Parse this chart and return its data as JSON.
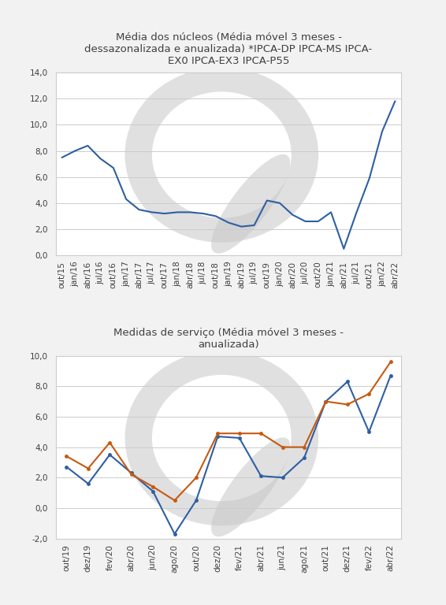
{
  "chart1_title": "Média dos núcleos (Média móvel 3 meses -\ndessazonalizada e anualizada) *IPCA-DP IPCA-MS IPCA-\nEX0 IPCA-EX3 IPCA-P55",
  "chart1_labels": [
    "out/15",
    "jan/16",
    "abr/16",
    "jul/16",
    "out/16",
    "jan/17",
    "abr/17",
    "jul/17",
    "out/17",
    "jan/18",
    "abr/18",
    "jul/18",
    "out/18",
    "jan/19",
    "abr/19",
    "jul/19",
    "out/19",
    "jan/20",
    "abr/20",
    "jul/20",
    "out/20",
    "jan/21",
    "abr/21",
    "jul/21",
    "out/21",
    "jan/22",
    "abr/22"
  ],
  "chart1_values": [
    7.5,
    8.0,
    8.4,
    7.4,
    6.7,
    4.3,
    3.5,
    3.3,
    3.2,
    3.3,
    3.3,
    3.2,
    3.0,
    2.5,
    2.2,
    2.3,
    4.2,
    4.0,
    3.1,
    2.6,
    2.6,
    3.3,
    0.5,
    3.3,
    5.9,
    9.5,
    11.8
  ],
  "chart1_ylim": [
    0,
    14
  ],
  "chart1_yticks": [
    0.0,
    2.0,
    4.0,
    6.0,
    8.0,
    10.0,
    12.0,
    14.0
  ],
  "chart1_line_color": "#2E5FA3",
  "chart2_title": "Medidas de serviço (Média móvel 3 meses -\nanualizada)",
  "chart2_labels": [
    "out/19",
    "dez/19",
    "fev/20",
    "abr/20",
    "jun/20",
    "ago/20",
    "out/20",
    "dez/20",
    "fev/21",
    "abr/21",
    "jun/21",
    "ago/21",
    "out/21",
    "dez/21",
    "fev/22",
    "abr/22"
  ],
  "chart2_servicos": [
    2.7,
    1.6,
    3.5,
    2.3,
    1.1,
    -1.7,
    0.5,
    4.7,
    4.6,
    2.1,
    2.0,
    3.3,
    7.0,
    8.3,
    5.0,
    8.7
  ],
  "chart2_subjacente": [
    3.4,
    2.6,
    4.3,
    2.2,
    1.4,
    0.5,
    2.0,
    4.9,
    4.9,
    4.9,
    4.0,
    4.0,
    7.0,
    6.8,
    7.5,
    9.6
  ],
  "chart2_ylim": [
    -2.0,
    10.0
  ],
  "chart2_yticks": [
    -2.0,
    0.0,
    2.0,
    4.0,
    6.0,
    8.0,
    10.0
  ],
  "chart2_line_color_servicos": "#2E5FA3",
  "chart2_line_color_subjacente": "#C55A11",
  "background_color": "#F2F2F2",
  "plot_bg_color": "#FFFFFF",
  "grid_color": "#CCCCCC",
  "text_color": "#404040",
  "border_color": "#CCCCCC",
  "title_fontsize": 9.5,
  "tick_fontsize": 7.5,
  "legend_fontsize": 8.5,
  "watermark_color": "#C8C8C8",
  "watermark_alpha": 0.55
}
